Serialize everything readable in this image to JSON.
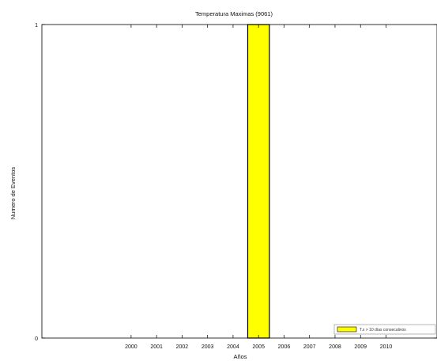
{
  "chart_data": {
    "type": "bar",
    "title": "Temperatura Maximas (9061)",
    "xlabel": "Años",
    "ylabel": "Numero de Eventos",
    "categories": [
      "2000",
      "2001",
      "2002",
      "2003",
      "2004",
      "2005",
      "2006",
      "2007",
      "2008",
      "2009",
      "2010"
    ],
    "x_ticks": [
      "2000",
      "2001",
      "2002",
      "2003",
      "2004",
      "2005",
      "2006",
      "2007",
      "2008",
      "2009",
      "2010"
    ],
    "xlim": [
      1996.5,
      2012
    ],
    "ylim": [
      0,
      1
    ],
    "y_ticks": [
      "0",
      "1"
    ],
    "series": [
      {
        "name": "T.x > 10 días consecutivos",
        "color": "#ffff00",
        "edge_color": "#000000",
        "points": [
          {
            "x": 2005,
            "value": 1
          }
        ]
      }
    ],
    "bar_width_years": 0.85,
    "grid": false,
    "legend_position": "bottom-right"
  }
}
